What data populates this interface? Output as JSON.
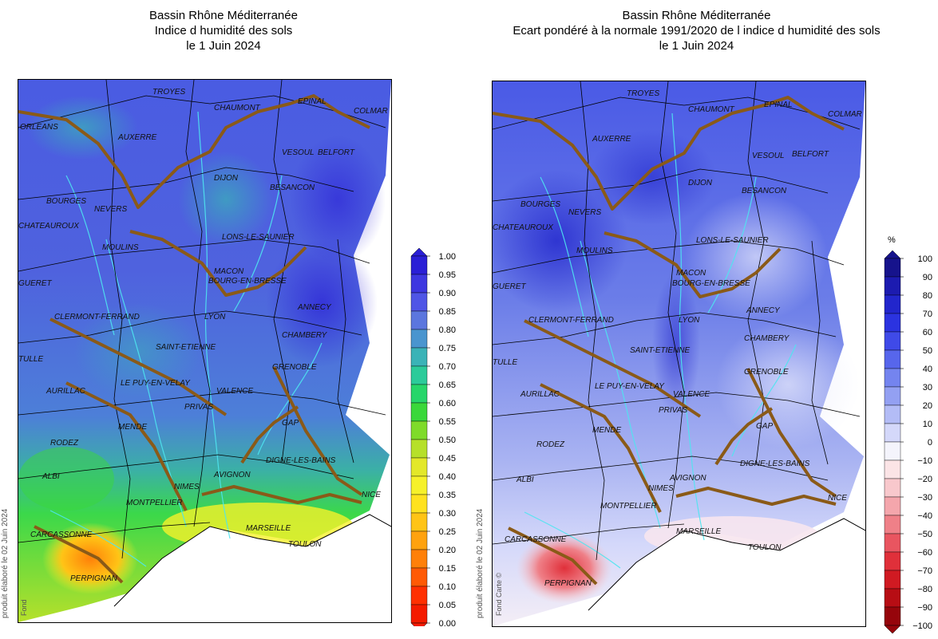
{
  "left_panel": {
    "title_line1": "Bassin Rhône Méditerranée",
    "title_line2": "Indice d humidité des sols",
    "title_line3": "le 1 Juin 2024",
    "credit": "produit élaboré le 02 Juin 2024",
    "fond": "Fond",
    "colorbar": {
      "labels": [
        "1.00",
        "0.95",
        "0.90",
        "0.85",
        "0.80",
        "0.75",
        "0.70",
        "0.65",
        "0.60",
        "0.55",
        "0.50",
        "0.45",
        "0.40",
        "0.35",
        "0.30",
        "0.25",
        "0.20",
        "0.15",
        "0.10",
        "0.05",
        "0.00"
      ],
      "colors": [
        "#2a1fd6",
        "#3d37e0",
        "#4f55e6",
        "#5b76de",
        "#4a95cf",
        "#3ab3b7",
        "#2ccb9a",
        "#27d66a",
        "#3ad83a",
        "#7fdb2a",
        "#b6e02a",
        "#e3e829",
        "#f6f12a",
        "#ffe21f",
        "#ffc416",
        "#ffa20f",
        "#ff8009",
        "#ff5a05",
        "#ff3002",
        "#f41b00"
      ]
    },
    "cities": [
      "TROYES",
      "CHAUMONT",
      "EPINAL",
      "COLMAR",
      "ORLEANS",
      "AUXERRE",
      "VESOUL",
      "BELFORT",
      "DIJON",
      "BESANCON",
      "BOURGES",
      "NEVERS",
      "LONS-LE-SAUNIER",
      "MOULINS",
      "MACON",
      "BOURG-EN-BRESSE",
      "ANNECY",
      "GUERET",
      "LYON",
      "CHAMBERY",
      "CLERMONT-FERRAND",
      "SAINT-ETIENNE",
      "GRENOBLE",
      "AURILLAC",
      "LE PUY-EN-VELAY",
      "VALENCE",
      "PRIVAS",
      "GAP",
      "MENDE",
      "RODEZ",
      "DIGNE-LES-BAINS",
      "ALBI",
      "AVIGNON",
      "NIMES",
      "MONTPELLIER",
      "NICE",
      "MARSEILLE",
      "TOULON",
      "CARCASSONNE",
      "PERPIGNAN",
      "TULLE",
      "CHATEAUROUX"
    ]
  },
  "right_panel": {
    "title_line1": "Bassin Rhône Méditerranée",
    "title_line2": "Ecart pondéré à la normale 1991/2020 de l indice d humidité des sols",
    "title_line3": "le 1 Juin 2024",
    "credit": "produit élaboré le 02 Juin 2024",
    "fond": "Fond Carte ©",
    "colorbar": {
      "unit": "%",
      "labels": [
        "100",
        "90",
        "80",
        "70",
        "60",
        "50",
        "40",
        "30",
        "20",
        "10",
        "0",
        "−10",
        "−20",
        "−30",
        "−40",
        "−50",
        "−60",
        "−70",
        "−80",
        "−90",
        "−100"
      ],
      "colors": [
        "#16138c",
        "#1c1bb0",
        "#2226cc",
        "#2b33e0",
        "#3f4ae8",
        "#5766ec",
        "#7484ef",
        "#93a0f2",
        "#b3bcf6",
        "#d4d8fa",
        "#f4f4fc",
        "#fbe4e6",
        "#f8c8cc",
        "#f4a6ac",
        "#ef8088",
        "#e95560",
        "#e0303a",
        "#d01a22",
        "#b70d14",
        "#96050b"
      ]
    },
    "cities": [
      "TROYES",
      "CHAUMONT",
      "EPINAL",
      "COLMAR",
      "AUXERRE",
      "VESOUL",
      "BELFORT",
      "DIJON",
      "BESANCON",
      "BOURGES",
      "NEVERS",
      "LONS-LE-SAUNIER",
      "MOULINS",
      "MACON",
      "BOURG-EN-BRESSE",
      "ANNECY",
      "GUERET",
      "LYON",
      "CHAMBERY",
      "CLERMONT-FERRAND",
      "SAINT-ETIENNE",
      "GRENOBLE",
      "AURILLAC",
      "LE PUY-EN-VELAY",
      "VALENCE",
      "PRIVAS",
      "GAP",
      "MENDE",
      "RODEZ",
      "DIGNE-LES-BAINS",
      "ALBI",
      "AVIGNON",
      "NIMES",
      "MONTPELLIER",
      "NICE",
      "MARSEILLE",
      "TOULON",
      "CARCASSONNE",
      "PERPIGNAN",
      "TULLE",
      "CHATEAUROUX"
    ]
  }
}
